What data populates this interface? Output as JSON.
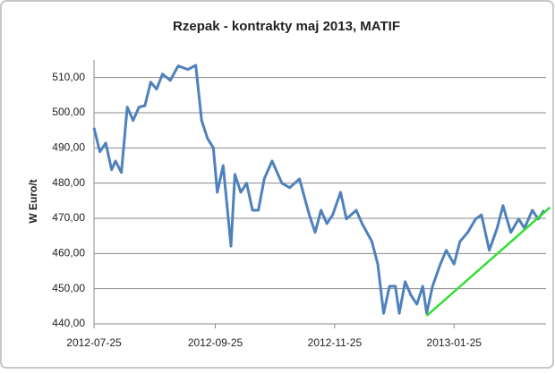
{
  "chart_data": {
    "type": "line",
    "title": "Rzepak - kontrakty maj 2013, MATIF",
    "y_label": "W Euro/t",
    "x": [
      "2012-07-25",
      "2012-07-28",
      "2012-07-31",
      "2012-08-03",
      "2012-08-05",
      "2012-08-08",
      "2012-08-11",
      "2012-08-14",
      "2012-08-17",
      "2012-08-20",
      "2012-08-23",
      "2012-08-26",
      "2012-08-29",
      "2012-09-02",
      "2012-09-06",
      "2012-09-11",
      "2012-09-15",
      "2012-09-18",
      "2012-09-21",
      "2012-09-24",
      "2012-09-26",
      "2012-09-29",
      "2012-10-03",
      "2012-10-05",
      "2012-10-08",
      "2012-10-11",
      "2012-10-14",
      "2012-10-17",
      "2012-10-20",
      "2012-10-24",
      "2012-10-29",
      "2012-11-02",
      "2012-11-07",
      "2012-11-12",
      "2012-11-15",
      "2012-11-18",
      "2012-11-21",
      "2012-11-24",
      "2012-11-28",
      "2012-12-01",
      "2012-12-06",
      "2012-12-09",
      "2012-12-14",
      "2012-12-17",
      "2012-12-20",
      "2012-12-23",
      "2012-12-26",
      "2012-12-28",
      "2012-12-31",
      "2013-01-03",
      "2013-01-06",
      "2013-01-09",
      "2013-01-11",
      "2013-01-14",
      "2013-01-18",
      "2013-01-21",
      "2013-01-25",
      "2013-01-28",
      "2013-02-01",
      "2013-02-05",
      "2013-02-08",
      "2013-02-12",
      "2013-02-16",
      "2013-02-19",
      "2013-02-23",
      "2013-02-27",
      "2013-03-02",
      "2013-03-06",
      "2013-03-09",
      "2013-03-12"
    ],
    "series": [
      {
        "color": "#4f81bd",
        "values": [
          495.7,
          488.9,
          491.4,
          483.8,
          486.3,
          483,
          501.6,
          497.8,
          501.6,
          502,
          508.7,
          506.7,
          511,
          509.2,
          513.3,
          512.3,
          513.5,
          497.8,
          492.7,
          490,
          477.4,
          485,
          462.1,
          482.5,
          477.4,
          480,
          472.3,
          472.3,
          481.2,
          486.3,
          480,
          478.7,
          481.2,
          471,
          466,
          472.3,
          468.5,
          471,
          477.4,
          469.8,
          472.3,
          468.5,
          463.4,
          457,
          443,
          450.7,
          450.7,
          443,
          452,
          448.1,
          445.6,
          450.7,
          443,
          450.7,
          457,
          460.9,
          457,
          463.4,
          466,
          469.8,
          471,
          460.9,
          467.2,
          473.6,
          466,
          469.8,
          467.2,
          472.3,
          469.8,
          472.3
        ]
      }
    ],
    "trend": {
      "color": "#33dd33",
      "x": [
        "2013-01-11",
        "2013-03-15"
      ],
      "values": [
        442.3,
        473.1
      ]
    },
    "xlim": [
      "2012-07-25",
      "2013-03-13"
    ],
    "xticks": [
      "2012-07-25",
      "2012-09-25",
      "2012-11-25",
      "2013-01-25"
    ],
    "ylim": [
      440,
      515
    ],
    "yticks": [
      {
        "value": 440,
        "label": "440,00"
      },
      {
        "value": 450,
        "label": "450,00"
      },
      {
        "value": 460,
        "label": "460,00"
      },
      {
        "value": 470,
        "label": "470,00"
      },
      {
        "value": 480,
        "label": "480,00"
      },
      {
        "value": 490,
        "label": "490,00"
      },
      {
        "value": 500,
        "label": "500,00"
      },
      {
        "value": 510,
        "label": "510,00"
      }
    ],
    "grid": true
  }
}
